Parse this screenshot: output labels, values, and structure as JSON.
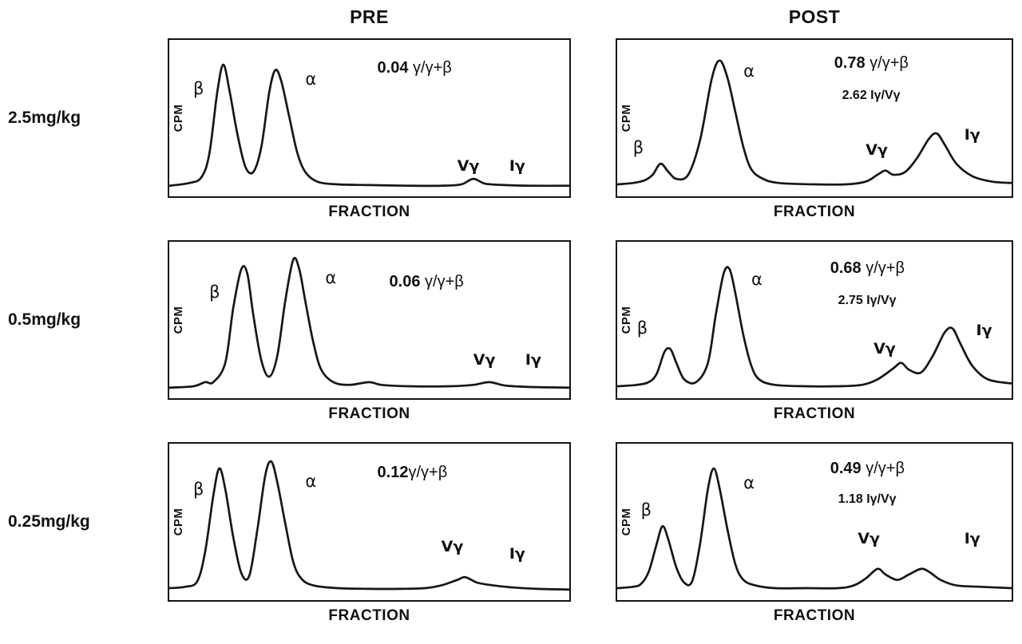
{
  "figure": {
    "col_headers": [
      "PRE",
      "POST"
    ],
    "row_labels": [
      "2.5mg/kg",
      "0.5mg/kg",
      "0.25mg/kg"
    ],
    "ylabel": "CPM",
    "xlabel": "FRACTION",
    "colors": {
      "background": "#ffffff",
      "trace": "#161616",
      "text": "#111111"
    }
  },
  "chart_data": [
    {
      "type": "line",
      "row": "2.5mg/kg",
      "column": "PRE",
      "xlabel": "FRACTION",
      "ylabel": "CPM",
      "x_axis": "fraction index (relative 0-100, unlabeled ticks)",
      "y_axis": "CPM (relative 0-1, unlabeled ticks)",
      "points": [
        [
          0,
          0.02
        ],
        [
          5,
          0.04
        ],
        [
          8,
          0.08
        ],
        [
          10,
          0.25
        ],
        [
          12,
          0.7
        ],
        [
          13.5,
          0.9
        ],
        [
          15,
          0.72
        ],
        [
          17,
          0.4
        ],
        [
          19,
          0.16
        ],
        [
          21,
          0.12
        ],
        [
          23,
          0.3
        ],
        [
          25,
          0.7
        ],
        [
          26.5,
          0.86
        ],
        [
          28,
          0.78
        ],
        [
          30,
          0.52
        ],
        [
          32,
          0.26
        ],
        [
          34,
          0.12
        ],
        [
          37,
          0.05
        ],
        [
          42,
          0.03
        ],
        [
          50,
          0.025
        ],
        [
          60,
          0.02
        ],
        [
          68,
          0.02
        ],
        [
          73,
          0.03
        ],
        [
          76,
          0.07
        ],
        [
          79,
          0.035
        ],
        [
          84,
          0.025
        ],
        [
          90,
          0.02
        ],
        [
          100,
          0.02
        ]
      ],
      "peaks": [
        {
          "name": "beta",
          "label": "β",
          "x": 6,
          "y": 26,
          "bold": false
        },
        {
          "name": "alpha",
          "label": "α",
          "x": 34,
          "y": 20,
          "bold": false
        },
        {
          "name": "v-gamma",
          "label": "Vγ",
          "x": 72,
          "y": 76,
          "bold": true
        },
        {
          "name": "i-gamma",
          "label": "Iγ",
          "x": 85,
          "y": 76,
          "bold": true
        }
      ],
      "annotations": [
        {
          "bold": "0.04",
          "rest": " γ/γ+β",
          "x": 52,
          "y": 12,
          "small": false
        }
      ]
    },
    {
      "type": "line",
      "row": "2.5mg/kg",
      "column": "POST",
      "xlabel": "FRACTION",
      "ylabel": "CPM",
      "x_axis": "fraction index (relative 0-100, unlabeled ticks)",
      "y_axis": "CPM (relative 0-1, unlabeled ticks)",
      "points": [
        [
          0,
          0.03
        ],
        [
          4,
          0.04
        ],
        [
          7,
          0.06
        ],
        [
          9,
          0.1
        ],
        [
          11,
          0.18
        ],
        [
          13,
          0.12
        ],
        [
          15,
          0.07
        ],
        [
          18,
          0.1
        ],
        [
          21,
          0.35
        ],
        [
          24,
          0.8
        ],
        [
          26,
          0.93
        ],
        [
          28,
          0.8
        ],
        [
          30,
          0.55
        ],
        [
          32,
          0.3
        ],
        [
          34,
          0.14
        ],
        [
          37,
          0.07
        ],
        [
          41,
          0.04
        ],
        [
          50,
          0.03
        ],
        [
          58,
          0.03
        ],
        [
          63,
          0.05
        ],
        [
          66,
          0.1
        ],
        [
          68,
          0.13
        ],
        [
          70,
          0.1
        ],
        [
          73,
          0.12
        ],
        [
          76,
          0.22
        ],
        [
          79,
          0.36
        ],
        [
          81,
          0.4
        ],
        [
          83,
          0.32
        ],
        [
          86,
          0.18
        ],
        [
          90,
          0.09
        ],
        [
          95,
          0.05
        ],
        [
          100,
          0.04
        ]
      ],
      "peaks": [
        {
          "name": "beta",
          "label": "β",
          "x": 4,
          "y": 64,
          "bold": false
        },
        {
          "name": "alpha",
          "label": "α",
          "x": 32,
          "y": 15,
          "bold": false
        },
        {
          "name": "v-gamma",
          "label": "Vγ",
          "x": 63,
          "y": 66,
          "bold": true
        },
        {
          "name": "i-gamma",
          "label": "Iγ",
          "x": 88,
          "y": 56,
          "bold": true
        }
      ],
      "annotations": [
        {
          "bold": "0.78",
          "rest": " γ/γ+β",
          "x": 55,
          "y": 9,
          "small": false
        },
        {
          "bold": "2.62 Iγ/Vγ",
          "rest": "",
          "x": 57,
          "y": 31,
          "small": true
        }
      ]
    },
    {
      "type": "line",
      "row": "0.5mg/kg",
      "column": "PRE",
      "xlabel": "FRACTION",
      "ylabel": "CPM",
      "x_axis": "fraction index (relative 0-100, unlabeled ticks)",
      "y_axis": "CPM (relative 0-1, unlabeled ticks)",
      "points": [
        [
          0,
          0.02
        ],
        [
          6,
          0.03
        ],
        [
          9,
          0.06
        ],
        [
          11,
          0.06
        ],
        [
          14,
          0.2
        ],
        [
          16,
          0.6
        ],
        [
          18,
          0.88
        ],
        [
          19.5,
          0.85
        ],
        [
          21,
          0.55
        ],
        [
          23,
          0.22
        ],
        [
          25,
          0.1
        ],
        [
          27,
          0.25
        ],
        [
          29,
          0.65
        ],
        [
          31,
          0.95
        ],
        [
          32.5,
          0.88
        ],
        [
          34,
          0.65
        ],
        [
          36,
          0.35
        ],
        [
          38,
          0.15
        ],
        [
          41,
          0.06
        ],
        [
          45,
          0.04
        ],
        [
          50,
          0.06
        ],
        [
          53,
          0.04
        ],
        [
          60,
          0.03
        ],
        [
          70,
          0.03
        ],
        [
          76,
          0.04
        ],
        [
          80,
          0.06
        ],
        [
          84,
          0.035
        ],
        [
          90,
          0.025
        ],
        [
          100,
          0.02
        ]
      ],
      "peaks": [
        {
          "name": "beta",
          "label": "β",
          "x": 10,
          "y": 27,
          "bold": false
        },
        {
          "name": "alpha",
          "label": "α",
          "x": 39,
          "y": 18,
          "bold": false
        },
        {
          "name": "v-gamma",
          "label": "Vγ",
          "x": 76,
          "y": 71,
          "bold": true
        },
        {
          "name": "i-gamma",
          "label": "Iγ",
          "x": 89,
          "y": 71,
          "bold": true
        }
      ],
      "annotations": [
        {
          "bold": "0.06",
          "rest": " γ/γ+β",
          "x": 55,
          "y": 20,
          "small": false
        }
      ]
    },
    {
      "type": "line",
      "row": "0.5mg/kg",
      "column": "POST",
      "xlabel": "FRACTION",
      "ylabel": "CPM",
      "x_axis": "fraction index (relative 0-100, unlabeled ticks)",
      "y_axis": "CPM (relative 0-1, unlabeled ticks)",
      "points": [
        [
          0,
          0.03
        ],
        [
          5,
          0.04
        ],
        [
          8,
          0.06
        ],
        [
          10,
          0.12
        ],
        [
          12,
          0.28
        ],
        [
          13.5,
          0.3
        ],
        [
          15,
          0.2
        ],
        [
          17,
          0.08
        ],
        [
          20,
          0.06
        ],
        [
          23,
          0.2
        ],
        [
          25,
          0.55
        ],
        [
          27,
          0.85
        ],
        [
          28.5,
          0.88
        ],
        [
          30,
          0.7
        ],
        [
          32,
          0.4
        ],
        [
          34,
          0.18
        ],
        [
          36,
          0.08
        ],
        [
          40,
          0.04
        ],
        [
          48,
          0.03
        ],
        [
          56,
          0.03
        ],
        [
          62,
          0.04
        ],
        [
          66,
          0.08
        ],
        [
          70,
          0.16
        ],
        [
          72,
          0.2
        ],
        [
          74,
          0.15
        ],
        [
          77,
          0.13
        ],
        [
          80,
          0.25
        ],
        [
          83,
          0.42
        ],
        [
          85,
          0.45
        ],
        [
          87,
          0.34
        ],
        [
          90,
          0.18
        ],
        [
          94,
          0.08
        ],
        [
          100,
          0.05
        ]
      ],
      "peaks": [
        {
          "name": "beta",
          "label": "β",
          "x": 5,
          "y": 50,
          "bold": false
        },
        {
          "name": "alpha",
          "label": "α",
          "x": 34,
          "y": 19,
          "bold": false
        },
        {
          "name": "v-gamma",
          "label": "Vγ",
          "x": 65,
          "y": 64,
          "bold": true
        },
        {
          "name": "i-gamma",
          "label": "Iγ",
          "x": 91,
          "y": 52,
          "bold": true
        }
      ],
      "annotations": [
        {
          "bold": "0.68",
          "rest": " γ/γ+β",
          "x": 54,
          "y": 11,
          "small": false
        },
        {
          "bold": "2.75 Iγ/Vγ",
          "rest": "",
          "x": 56,
          "y": 33,
          "small": true
        }
      ]
    },
    {
      "type": "line",
      "row": "0.25mg/kg",
      "column": "PRE",
      "xlabel": "FRACTION",
      "ylabel": "CPM",
      "x_axis": "fraction index (relative 0-100, unlabeled ticks)",
      "y_axis": "CPM (relative 0-1, unlabeled ticks)",
      "points": [
        [
          0,
          0.03
        ],
        [
          4,
          0.04
        ],
        [
          7,
          0.08
        ],
        [
          9,
          0.3
        ],
        [
          11,
          0.7
        ],
        [
          12.5,
          0.9
        ],
        [
          14,
          0.75
        ],
        [
          16,
          0.4
        ],
        [
          18,
          0.14
        ],
        [
          20,
          0.12
        ],
        [
          22,
          0.45
        ],
        [
          24,
          0.85
        ],
        [
          25.5,
          0.95
        ],
        [
          27,
          0.8
        ],
        [
          29,
          0.5
        ],
        [
          31,
          0.22
        ],
        [
          33,
          0.1
        ],
        [
          36,
          0.05
        ],
        [
          42,
          0.03
        ],
        [
          50,
          0.025
        ],
        [
          58,
          0.025
        ],
        [
          64,
          0.03
        ],
        [
          68,
          0.05
        ],
        [
          72,
          0.09
        ],
        [
          74,
          0.11
        ],
        [
          77,
          0.07
        ],
        [
          81,
          0.05
        ],
        [
          86,
          0.035
        ],
        [
          92,
          0.025
        ],
        [
          100,
          0.02
        ]
      ],
      "peaks": [
        {
          "name": "beta",
          "label": "β",
          "x": 6,
          "y": 24,
          "bold": false
        },
        {
          "name": "alpha",
          "label": "α",
          "x": 34,
          "y": 19,
          "bold": false
        },
        {
          "name": "v-gamma",
          "label": "Vγ",
          "x": 68,
          "y": 61,
          "bold": true
        },
        {
          "name": "i-gamma",
          "label": "Iγ",
          "x": 85,
          "y": 66,
          "bold": true
        }
      ],
      "annotations": [
        {
          "bold": "0.12",
          "rest": "γ/γ+β",
          "x": 52,
          "y": 13,
          "small": false
        }
      ]
    },
    {
      "type": "line",
      "row": "0.25mg/kg",
      "column": "POST",
      "xlabel": "FRACTION",
      "ylabel": "CPM",
      "x_axis": "fraction index (relative 0-100, unlabeled ticks)",
      "y_axis": "CPM (relative 0-1, unlabeled ticks)",
      "points": [
        [
          0,
          0.03
        ],
        [
          4,
          0.04
        ],
        [
          6,
          0.06
        ],
        [
          8,
          0.15
        ],
        [
          10,
          0.35
        ],
        [
          11.5,
          0.48
        ],
        [
          13,
          0.38
        ],
        [
          15,
          0.18
        ],
        [
          17,
          0.07
        ],
        [
          19,
          0.08
        ],
        [
          21,
          0.35
        ],
        [
          23,
          0.75
        ],
        [
          24.5,
          0.9
        ],
        [
          26,
          0.75
        ],
        [
          28,
          0.45
        ],
        [
          30,
          0.2
        ],
        [
          32,
          0.09
        ],
        [
          35,
          0.05
        ],
        [
          40,
          0.03
        ],
        [
          48,
          0.03
        ],
        [
          56,
          0.03
        ],
        [
          60,
          0.05
        ],
        [
          63,
          0.1
        ],
        [
          66,
          0.17
        ],
        [
          68,
          0.13
        ],
        [
          71,
          0.09
        ],
        [
          74,
          0.13
        ],
        [
          77,
          0.17
        ],
        [
          79,
          0.15
        ],
        [
          82,
          0.09
        ],
        [
          86,
          0.05
        ],
        [
          92,
          0.04
        ],
        [
          100,
          0.03
        ]
      ],
      "peaks": [
        {
          "name": "beta",
          "label": "β",
          "x": 6,
          "y": 37,
          "bold": false
        },
        {
          "name": "alpha",
          "label": "α",
          "x": 32,
          "y": 20,
          "bold": false
        },
        {
          "name": "v-gamma",
          "label": "Vγ",
          "x": 61,
          "y": 56,
          "bold": true
        },
        {
          "name": "i-gamma",
          "label": "Iγ",
          "x": 88,
          "y": 56,
          "bold": true
        }
      ],
      "annotations": [
        {
          "bold": "0.49",
          "rest": " γ/γ+β",
          "x": 54,
          "y": 10,
          "small": false
        },
        {
          "bold": "1.18 Iγ/Vγ",
          "rest": "",
          "x": 56,
          "y": 31,
          "small": true
        }
      ]
    }
  ]
}
